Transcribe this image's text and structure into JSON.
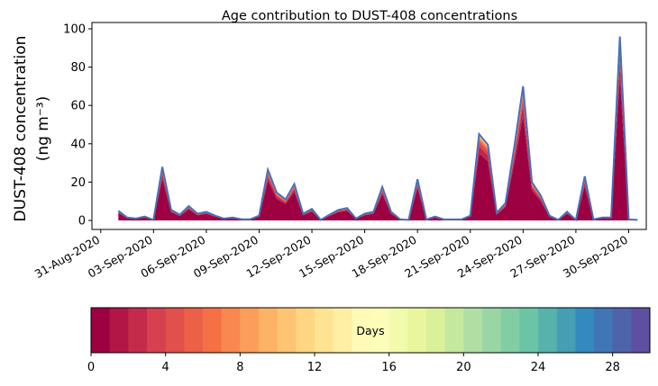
{
  "chart_data": {
    "type": "area",
    "title": "Age contribution to DUST-408 concentrations",
    "ylabel_line1": "DUST-408 concentration",
    "ylabel_line2": "(ng m⁻³)",
    "xlabel": "",
    "ylim": [
      0,
      100
    ],
    "yticks": [
      0,
      20,
      40,
      60,
      80,
      100
    ],
    "xlim_days_from_31aug": [
      -0.5,
      31.0
    ],
    "xtick_labels": [
      "31-Aug-2020",
      "03-Sep-2020",
      "06-Sep-2020",
      "09-Sep-2020",
      "12-Sep-2020",
      "15-Sep-2020",
      "18-Sep-2020",
      "21-Sep-2020",
      "24-Sep-2020",
      "27-Sep-2020",
      "30-Sep-2020"
    ],
    "xtick_days_from_31aug": [
      0,
      3,
      6,
      9,
      12,
      15,
      18,
      21,
      24,
      27,
      30
    ],
    "time_step_days": 0.5,
    "start_days_from_31aug": 1,
    "total": [
      5,
      1.5,
      1,
      2,
      0.3,
      28,
      5.5,
      3,
      7.5,
      3.5,
      4.5,
      2.5,
      1,
      1.5,
      0.6,
      0.6,
      2.5,
      26.5,
      14.5,
      11,
      19,
      3.5,
      6,
      0.3,
      3,
      5.5,
      6.5,
      1,
      3.5,
      4.5,
      17.5,
      4.5,
      0.6,
      0.3,
      21.5,
      0.5,
      2,
      0.5,
      0.5,
      0.5,
      2.5,
      45,
      39.5,
      4,
      9,
      38.5,
      70,
      20,
      13,
      2.5,
      0.3,
      4.5,
      0.3,
      23,
      0.5,
      1.5,
      1.5,
      96,
      0.5,
      0.3
    ],
    "total_line_color": "#4a6fb5",
    "colorbar": {
      "label": "Days",
      "range": [
        0,
        30
      ],
      "bins": 30,
      "ticks": [
        0,
        4,
        8,
        12,
        16,
        20,
        24,
        28
      ],
      "cmap_anchors": [
        "#9e0142",
        "#d53e4f",
        "#f46d43",
        "#fdae61",
        "#fee08b",
        "#ffffbf",
        "#e6f598",
        "#abdda4",
        "#66c2a5",
        "#3288bd",
        "#5e4fa2"
      ]
    }
  }
}
